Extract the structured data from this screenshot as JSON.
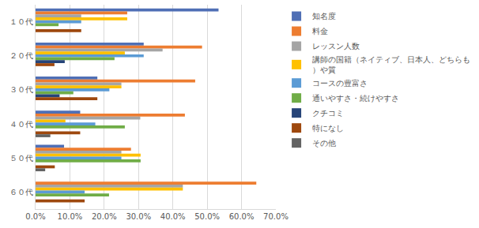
{
  "chart_data": {
    "type": "bar",
    "orientation": "horizontal",
    "categories": [
      "１０代",
      "２０代",
      "３０代",
      "４０代",
      "５０代",
      "６０代"
    ],
    "series": [
      {
        "name": "知名度",
        "color": "#4F6FB5",
        "values": [
          53.3,
          31.5,
          18.0,
          13.0,
          8.3,
          0
        ]
      },
      {
        "name": "料金",
        "color": "#ED7D31",
        "values": [
          26.7,
          48.5,
          46.5,
          43.5,
          27.8,
          64.3
        ]
      },
      {
        "name": "レッスン人数",
        "color": "#A5A5A5",
        "values": [
          13.3,
          37.0,
          25.0,
          30.5,
          25.0,
          42.9
        ]
      },
      {
        "name": "講師の国籍（ネイティブ、日本人、どちらも）や質",
        "color": "#FFC000",
        "values": [
          26.7,
          26.0,
          25.0,
          8.7,
          30.6,
          42.9
        ]
      },
      {
        "name": "コースの豊富さ",
        "color": "#5B9BD5",
        "values": [
          13.3,
          31.5,
          21.5,
          17.4,
          25.0,
          14.3
        ]
      },
      {
        "name": "通いやすさ・続けやすさ",
        "color": "#70AD47",
        "values": [
          6.7,
          23.0,
          11.0,
          26.0,
          30.6,
          21.4
        ]
      },
      {
        "name": "クチコミ",
        "color": "#264478",
        "values": [
          0,
          8.5,
          7.0,
          0,
          0,
          0
        ]
      },
      {
        "name": "特になし",
        "color": "#9E480E",
        "values": [
          13.3,
          5.5,
          18.0,
          13.0,
          5.6,
          14.3
        ]
      },
      {
        "name": "その他",
        "color": "#636363",
        "values": [
          0,
          0,
          0,
          4.3,
          2.8,
          0
        ]
      }
    ],
    "xlim": [
      0,
      70
    ],
    "xticks": [
      {
        "value": 0,
        "label": "0.0%"
      },
      {
        "value": 10,
        "label": "10.0%"
      },
      {
        "value": 20,
        "label": "20.0%"
      },
      {
        "value": 30,
        "label": "30.0%"
      },
      {
        "value": 40,
        "label": "40.0%"
      },
      {
        "value": 50,
        "label": "50.0%"
      },
      {
        "value": 60,
        "label": "60.0%"
      },
      {
        "value": 70,
        "label": "70.0%"
      }
    ],
    "grid": true,
    "legend": "right"
  }
}
